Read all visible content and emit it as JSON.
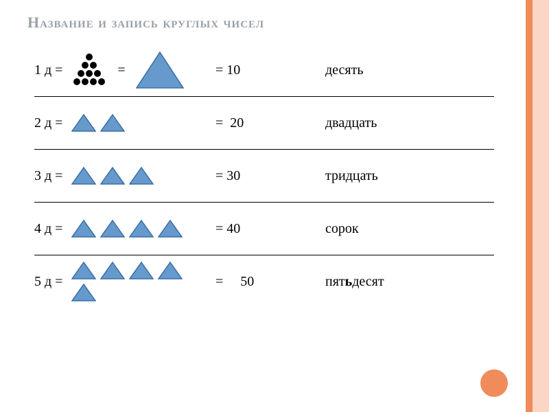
{
  "title": "Название и запись круглых чисел",
  "title_fontsize": 22,
  "title_color": "#9aa0a6",
  "body_font_size": 20,
  "body_text_color": "#000000",
  "rail_outer_color": "#fbd6c4",
  "rail_inner_color": "#f08b5a",
  "accent_dot_color": "#f08b5a",
  "divider_color": "#000000",
  "triangle": {
    "fill": "#6699cc",
    "stroke": "#3a6ea5",
    "stroke_width": 1.5
  },
  "big_triangle": {
    "fill": "#6699cc",
    "stroke": "#3a6ea5",
    "stroke_width": 1.5,
    "width": 70,
    "height": 54
  },
  "dot_cluster": {
    "fill": "#000000",
    "radius": 5,
    "rows": [
      1,
      2,
      3,
      4
    ]
  },
  "rows": [
    {
      "label": "1 д =",
      "count": 1,
      "show_dots": true,
      "show_big": true,
      "eq_text": "=",
      "num_text": "= 10",
      "word": "десять"
    },
    {
      "label": "2 д =",
      "count": 2,
      "num_text": "=  20",
      "word": "двадцать"
    },
    {
      "label": "3 д =",
      "count": 3,
      "num_text": "= 30",
      "word": "тридцать"
    },
    {
      "label": "4 д =",
      "count": 4,
      "num_text": "= 40",
      "word": "сорок"
    },
    {
      "label": "5 д =",
      "count": 5,
      "num_text": "=     50",
      "word_prefix": "пят",
      "word_bold": "ь",
      "word_suffix": "десят"
    }
  ]
}
